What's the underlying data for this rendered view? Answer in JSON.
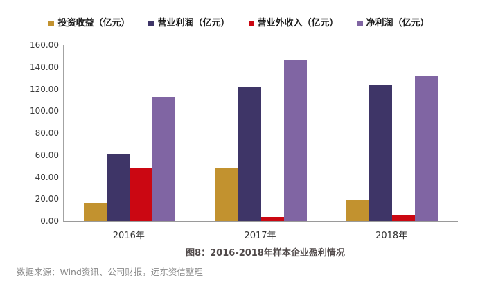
{
  "chart_data": {
    "type": "bar",
    "title": "图8：2016-2018年样本企业盈利情况",
    "categories": [
      "2016年",
      "2017年",
      "2018年"
    ],
    "series": [
      {
        "key": "investment-income",
        "name": "投资收益（亿元）",
        "color": "#C2922F",
        "values": [
          16.5,
          48.0,
          19.0
        ]
      },
      {
        "key": "operating-profit",
        "name": "营业利润（亿元）",
        "color": "#3E3567",
        "values": [
          61.0,
          121.5,
          124.0
        ]
      },
      {
        "key": "non-operating-income",
        "name": "营业外收入（亿元）",
        "color": "#CB0712",
        "values": [
          48.5,
          4.0,
          5.0
        ]
      },
      {
        "key": "net-profit",
        "name": "净利润（亿元）",
        "color": "#8065A3",
        "values": [
          113.0,
          147.0,
          132.5
        ]
      }
    ],
    "ylim": [
      0,
      160
    ],
    "ytick_step": 20,
    "ytick_labels": [
      "0.00",
      "20.00",
      "40.00",
      "60.00",
      "80.00",
      "100.00",
      "120.00",
      "140.00",
      "160.00"
    ],
    "grid": false,
    "legend_position": "top",
    "axis_color": "#A0A0A0"
  },
  "caption": "图8：2016-2018年样本企业盈利情况",
  "source": "数据来源：Wind资讯、公司财报，远东资信整理"
}
